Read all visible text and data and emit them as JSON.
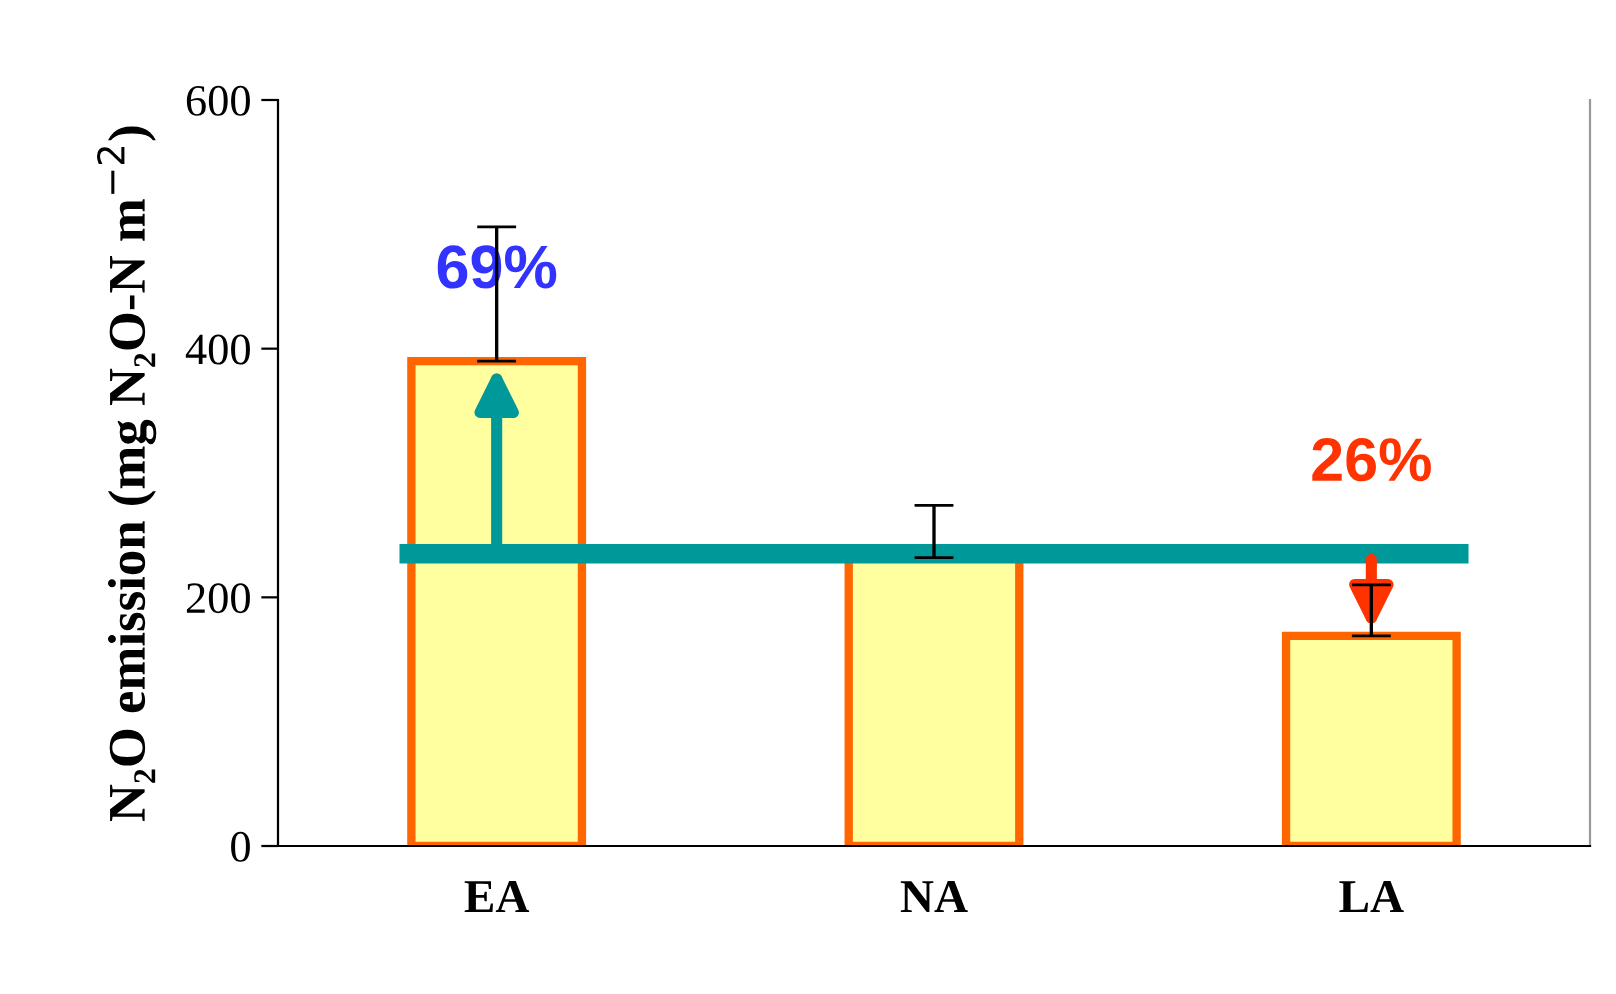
{
  "chart_data": {
    "type": "bar",
    "ylabel": "N₂O emission (mg N₂O-N m$^{−2}$)",
    "categories": [
      "EA",
      "NA",
      "LA"
    ],
    "values": [
      390,
      232,
      169
    ],
    "errors": [
      [
        390,
        498
      ],
      [
        232,
        274
      ],
      [
        169,
        210
      ]
    ],
    "color": "#ffffa0",
    "ylim": [
      0,
      600
    ],
    "yticks": [
      0,
      200,
      400,
      600
    ],
    "ref_lines": [
      {
        "axis": "y",
        "value": 235,
        "color": "#009999"
      }
    ],
    "annotations": [
      {
        "text": "69%",
        "x": "EA",
        "y": 390
      },
      {
        "text": "26%",
        "x": "LA",
        "y": 169
      }
    ],
    "grid": false,
    "legend": false
  }
}
